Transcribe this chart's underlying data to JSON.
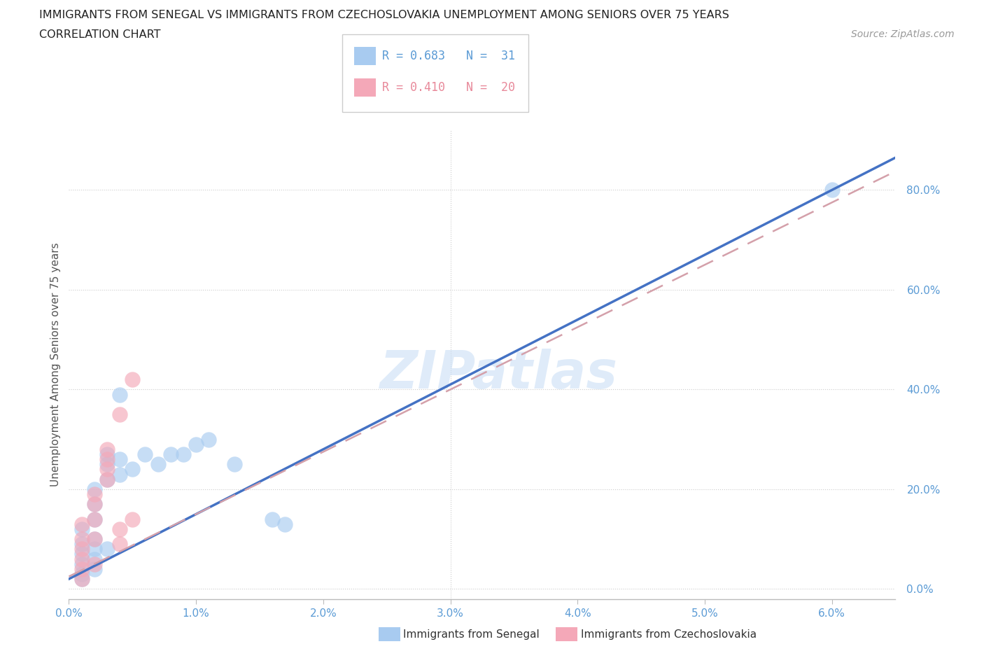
{
  "title_line1": "IMMIGRANTS FROM SENEGAL VS IMMIGRANTS FROM CZECHOSLOVAKIA UNEMPLOYMENT AMONG SENIORS OVER 75 YEARS",
  "title_line2": "CORRELATION CHART",
  "source": "Source: ZipAtlas.com",
  "ylabel": "Unemployment Among Seniors over 75 years",
  "xlim": [
    0.0,
    0.065
  ],
  "ylim": [
    -0.02,
    0.92
  ],
  "xticks": [
    0.0,
    0.01,
    0.02,
    0.03,
    0.04,
    0.05,
    0.06
  ],
  "xtick_labels": [
    "0.0%",
    "1.0%",
    "2.0%",
    "3.0%",
    "4.0%",
    "5.0%",
    "6.0%"
  ],
  "ytick_labels": [
    "0.0%",
    "20.0%",
    "40.0%",
    "60.0%",
    "80.0%"
  ],
  "yticks": [
    0.0,
    0.2,
    0.4,
    0.6,
    0.8
  ],
  "senegal_color": "#A8CBF0",
  "czech_color": "#F4A8B8",
  "senegal_R": 0.683,
  "senegal_N": 31,
  "czech_R": 0.41,
  "czech_N": 20,
  "watermark": "ZIPatlas",
  "senegal_points": [
    [
      0.001,
      0.02
    ],
    [
      0.001,
      0.03
    ],
    [
      0.001,
      0.05
    ],
    [
      0.001,
      0.07
    ],
    [
      0.001,
      0.09
    ],
    [
      0.001,
      0.12
    ],
    [
      0.002,
      0.04
    ],
    [
      0.002,
      0.06
    ],
    [
      0.002,
      0.08
    ],
    [
      0.002,
      0.1
    ],
    [
      0.002,
      0.14
    ],
    [
      0.002,
      0.17
    ],
    [
      0.002,
      0.2
    ],
    [
      0.003,
      0.08
    ],
    [
      0.003,
      0.22
    ],
    [
      0.003,
      0.25
    ],
    [
      0.003,
      0.27
    ],
    [
      0.004,
      0.23
    ],
    [
      0.004,
      0.26
    ],
    [
      0.004,
      0.39
    ],
    [
      0.005,
      0.24
    ],
    [
      0.006,
      0.27
    ],
    [
      0.007,
      0.25
    ],
    [
      0.008,
      0.27
    ],
    [
      0.009,
      0.27
    ],
    [
      0.01,
      0.29
    ],
    [
      0.011,
      0.3
    ],
    [
      0.013,
      0.25
    ],
    [
      0.016,
      0.14
    ],
    [
      0.017,
      0.13
    ],
    [
      0.06,
      0.8
    ]
  ],
  "czech_points": [
    [
      0.001,
      0.02
    ],
    [
      0.001,
      0.04
    ],
    [
      0.001,
      0.06
    ],
    [
      0.001,
      0.08
    ],
    [
      0.001,
      0.1
    ],
    [
      0.001,
      0.13
    ],
    [
      0.002,
      0.05
    ],
    [
      0.002,
      0.1
    ],
    [
      0.002,
      0.14
    ],
    [
      0.002,
      0.17
    ],
    [
      0.002,
      0.19
    ],
    [
      0.003,
      0.22
    ],
    [
      0.003,
      0.24
    ],
    [
      0.003,
      0.26
    ],
    [
      0.003,
      0.28
    ],
    [
      0.004,
      0.09
    ],
    [
      0.004,
      0.12
    ],
    [
      0.004,
      0.35
    ],
    [
      0.005,
      0.14
    ],
    [
      0.005,
      0.42
    ]
  ],
  "senegal_line_color": "#4472C4",
  "czech_line_color": "#D4A0AA",
  "background_color": "#FFFFFF"
}
